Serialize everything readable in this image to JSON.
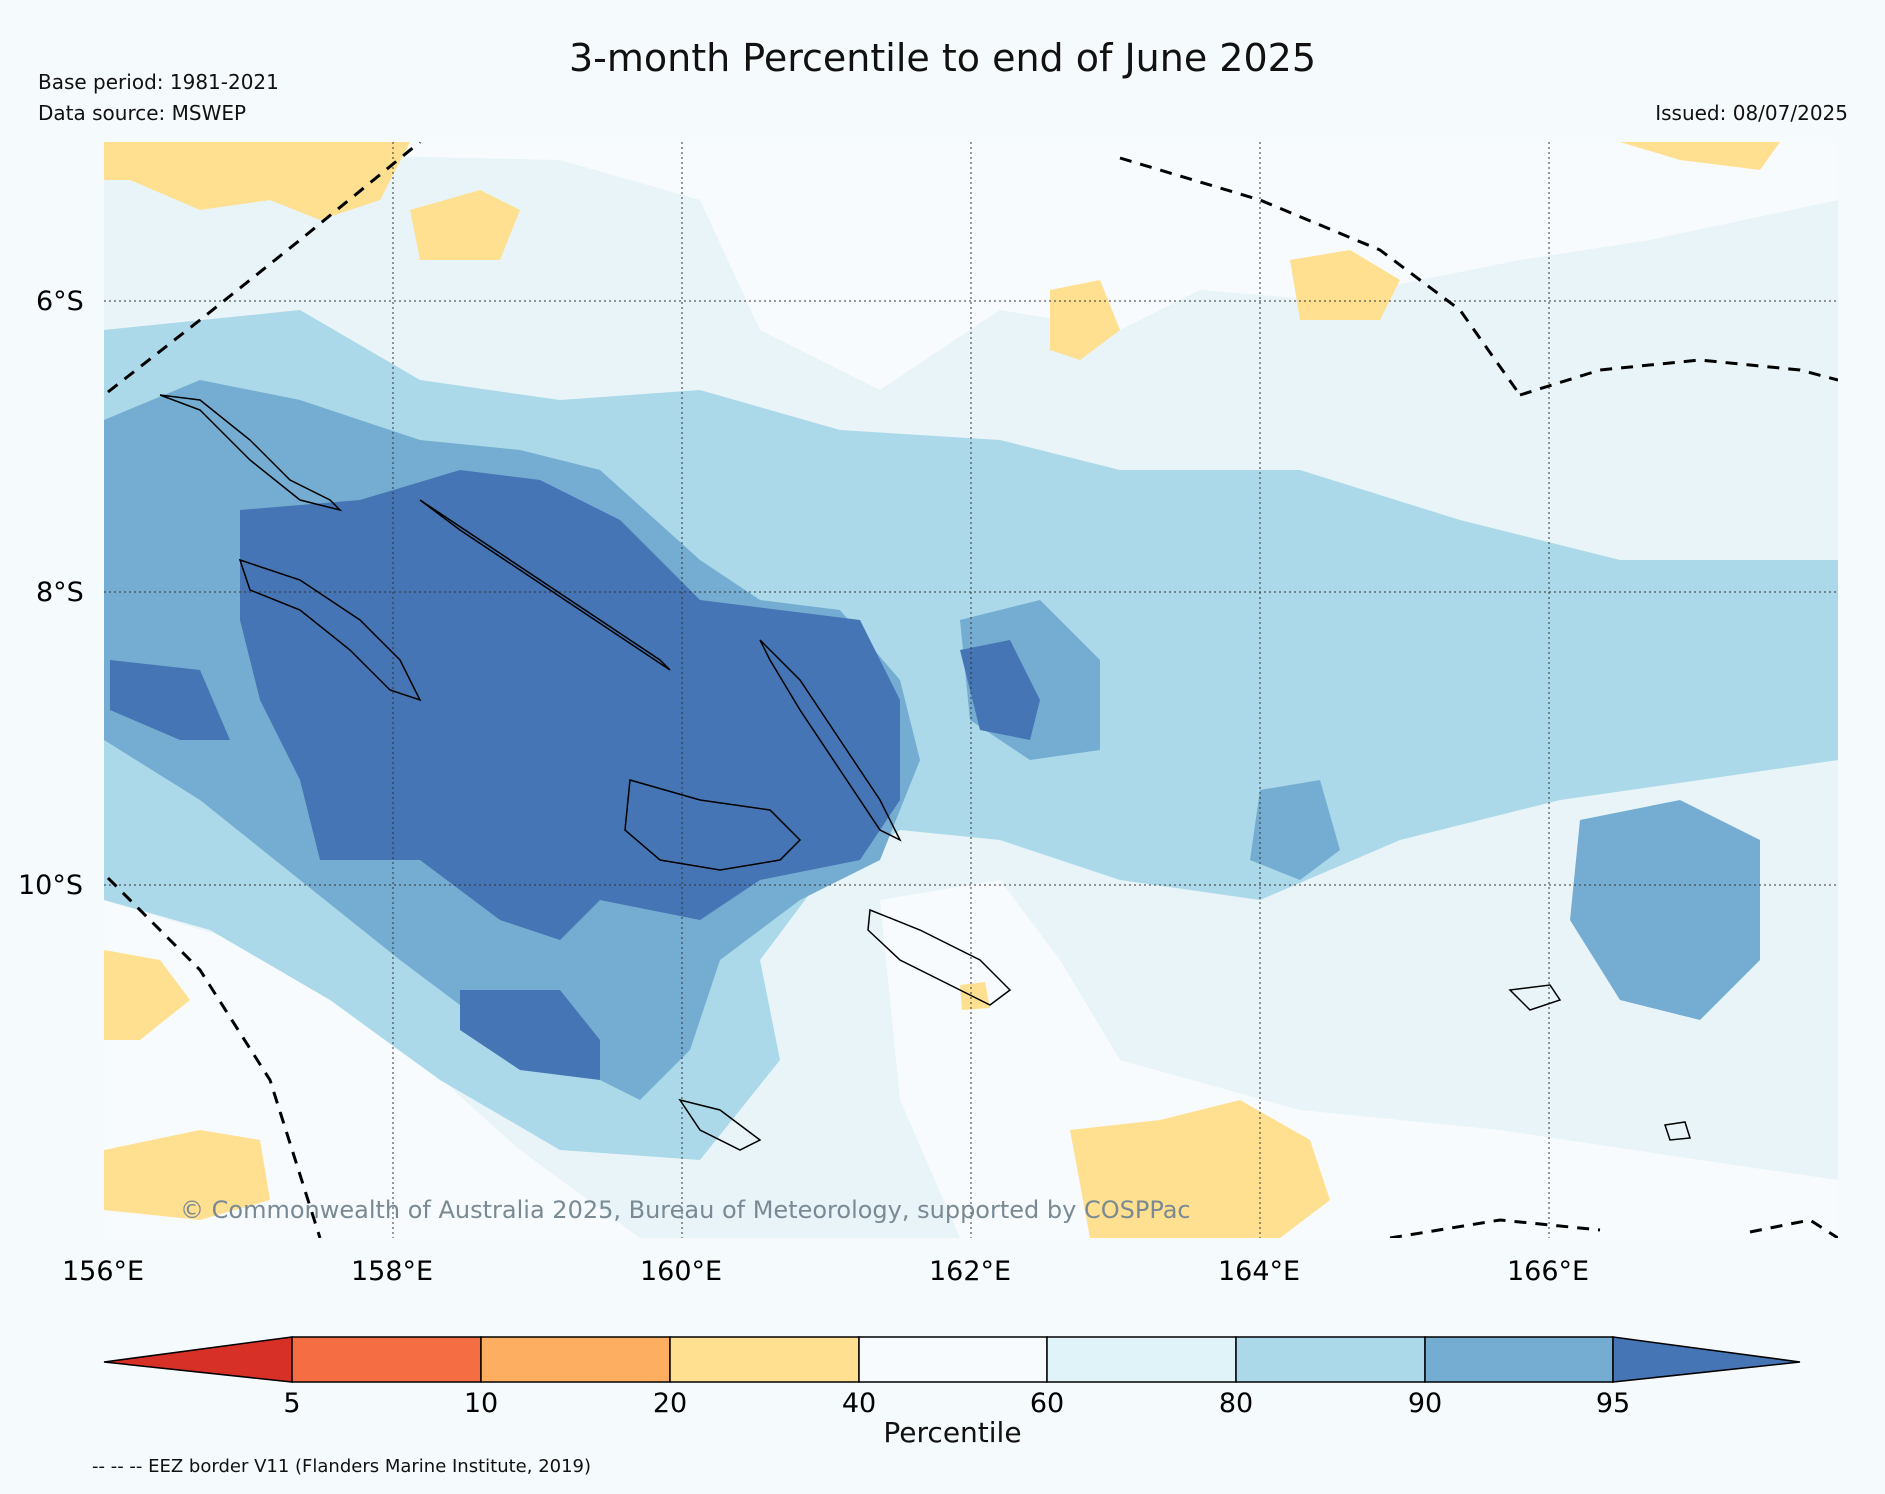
{
  "header": {
    "title": "3-month Percentile to end of June 2025",
    "base_period": "Base period: 1981-2021",
    "data_source": "Data source: MSWEP",
    "issued": "Issued: 08/07/2025"
  },
  "map": {
    "lat_labels": [
      "6°S",
      "8°S",
      "10°S"
    ],
    "lon_labels": [
      "156°E",
      "158°E",
      "160°E",
      "162°E",
      "164°E",
      "166°E"
    ],
    "copyright": "© Commonwealth of Australia 2025, Bureau of Meteorology, supported by COSPPac",
    "ocean_color": "#f7fbfd",
    "land_outline_color": "#000000"
  },
  "colorbar": {
    "title": "Percentile",
    "ticks": [
      "5",
      "10",
      "20",
      "40",
      "60",
      "80",
      "90",
      "95"
    ],
    "colors": [
      "#d73027",
      "#f46d43",
      "#fdae61",
      "#fee090",
      "#f7fbfd",
      "#e0f3f8",
      "#abd9e9",
      "#74add1",
      "#4575b4"
    ]
  },
  "legend": {
    "eez_note": "-- -- -- EEZ border V11 (Flanders Marine Institute, 2019)"
  }
}
